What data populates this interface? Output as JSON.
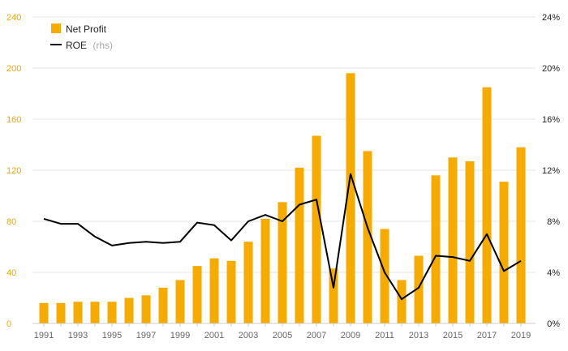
{
  "chart_data": {
    "type": "bar",
    "x": [
      1991,
      1992,
      1993,
      1994,
      1995,
      1996,
      1997,
      1998,
      1999,
      2000,
      2001,
      2002,
      2003,
      2004,
      2005,
      2006,
      2007,
      2008,
      2009,
      2010,
      2011,
      2012,
      2013,
      2014,
      2015,
      2016,
      2017,
      2018,
      2019
    ],
    "x_tick_labels": [
      "1991",
      "1993",
      "1995",
      "1997",
      "1999",
      "2001",
      "2003",
      "2005",
      "2007",
      "2009",
      "2011",
      "2013",
      "2015",
      "2017",
      "2019"
    ],
    "series": [
      {
        "name": "Net Profit",
        "type": "bar",
        "axis": "left",
        "color": "#f5ab00",
        "values": [
          16,
          16,
          17,
          17,
          17,
          20,
          22,
          28,
          34,
          45,
          51,
          49,
          64,
          82,
          95,
          122,
          147,
          43,
          196,
          135,
          74,
          34,
          53,
          116,
          130,
          127,
          185,
          111,
          138
        ]
      },
      {
        "name": "ROE",
        "name_suffix": "(rhs)",
        "type": "line",
        "axis": "right",
        "color": "#000000",
        "values": [
          8.2,
          7.8,
          7.8,
          6.8,
          6.1,
          6.3,
          6.4,
          6.3,
          6.4,
          7.9,
          7.7,
          6.5,
          8.0,
          8.5,
          8.0,
          9.3,
          9.7,
          2.8,
          11.7,
          7.5,
          4.0,
          1.9,
          2.8,
          5.3,
          5.2,
          4.9,
          7.0,
          4.1,
          4.9
        ]
      }
    ],
    "y_left": {
      "min": 0,
      "max": 240,
      "ticks": [
        0,
        40,
        80,
        120,
        160,
        200,
        240
      ],
      "tick_labels": [
        "0",
        "40",
        "80",
        "120",
        "160",
        "200",
        "240"
      ]
    },
    "y_right": {
      "min": 0,
      "max": 24,
      "ticks": [
        0,
        4,
        8,
        12,
        16,
        20,
        24
      ],
      "tick_labels": [
        "0%",
        "4%",
        "8%",
        "12%",
        "16%",
        "20%",
        "24%"
      ]
    },
    "grid": true,
    "legend_position": "top-left"
  }
}
